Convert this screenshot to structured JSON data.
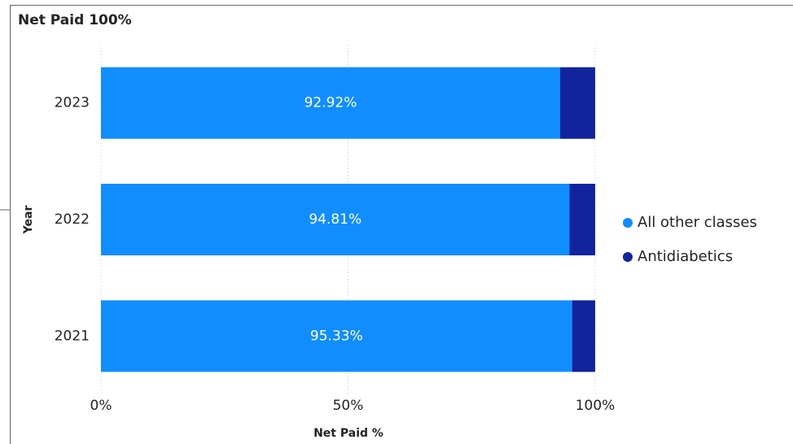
{
  "chart_data": {
    "type": "stacked_bar_horizontal",
    "title": "Net Paid 100%",
    "x_label": "Net Paid %",
    "y_label": "Year",
    "categories": [
      "2023",
      "2022",
      "2021"
    ],
    "series": [
      {
        "name": "All other classes",
        "color": "#118dff",
        "values": [
          92.92,
          94.81,
          95.33
        ],
        "value_labels": [
          "92.92%",
          "94.81%",
          "95.33%"
        ]
      },
      {
        "name": "Antidiabetics",
        "color": "#12239e",
        "values": [
          7.08,
          5.19,
          4.67
        ]
      }
    ],
    "xlim": [
      0,
      100
    ],
    "xticks": [
      {
        "value": 0,
        "label": "0%"
      },
      {
        "value": 50,
        "label": "50%"
      },
      {
        "value": 100,
        "label": "100%"
      }
    ],
    "grid": true,
    "legend": "right"
  }
}
